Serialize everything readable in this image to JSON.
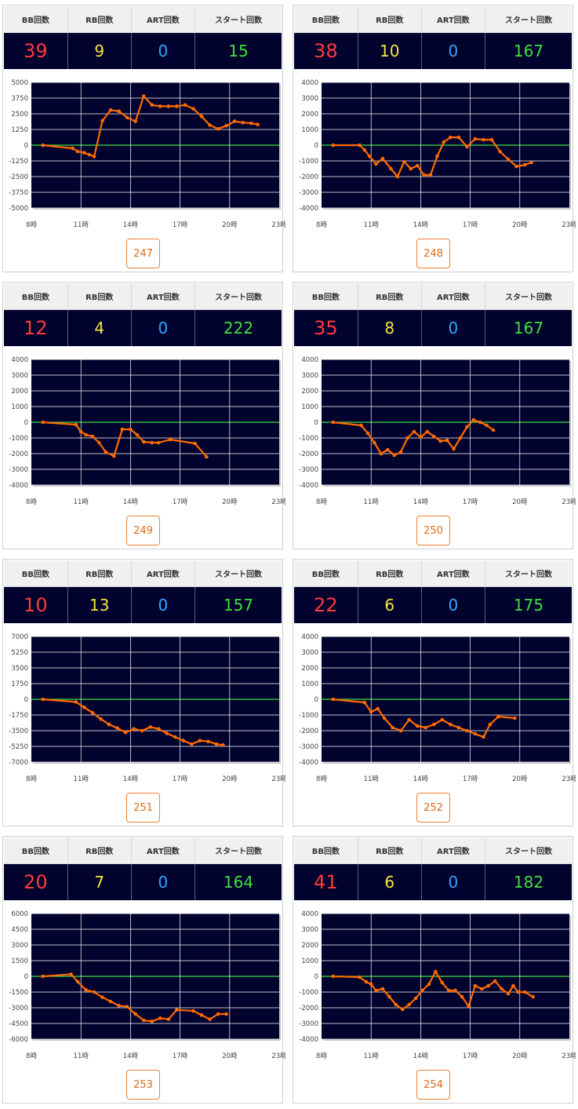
{
  "headers": {
    "bb": "BB回数",
    "rb": "RB回数",
    "art": "ART回数",
    "start": "スタート回数"
  },
  "colors": {
    "plot_bg": "#02022e",
    "grid": "#ffffff",
    "zero_line": "#3fe03f",
    "series": "#ff6a00",
    "bb": "#ff3b3b",
    "rb": "#f5e63a",
    "art": "#2ea8ff",
    "start": "#3fe03f"
  },
  "machines": [
    {
      "id": "247",
      "bb": "39",
      "rb": "9",
      "art": "0",
      "start": "15",
      "chart_data": {
        "type": "line",
        "x_ticks": [
          "8時",
          "11時",
          "14時",
          "17時",
          "20時",
          "23時"
        ],
        "xlim": [
          8,
          23
        ],
        "y_ticks": [
          "5000",
          "3750",
          "2500",
          "1250",
          "0",
          "-1250",
          "-2500",
          "-3750",
          "-5000"
        ],
        "ylim": [
          -5000,
          5000
        ],
        "points": [
          [
            8.7,
            0
          ],
          [
            10.5,
            -250
          ],
          [
            10.8,
            -500
          ],
          [
            11.2,
            -600
          ],
          [
            11.5,
            -750
          ],
          [
            11.8,
            -900
          ],
          [
            12.3,
            1950
          ],
          [
            12.8,
            2800
          ],
          [
            13.3,
            2700
          ],
          [
            13.8,
            2200
          ],
          [
            14.3,
            1900
          ],
          [
            14.8,
            3900
          ],
          [
            15.3,
            3200
          ],
          [
            15.8,
            3100
          ],
          [
            16.3,
            3100
          ],
          [
            16.8,
            3100
          ],
          [
            17.3,
            3200
          ],
          [
            17.8,
            2900
          ],
          [
            18.3,
            2300
          ],
          [
            18.8,
            1600
          ],
          [
            19.3,
            1300
          ],
          [
            19.8,
            1550
          ],
          [
            20.3,
            1900
          ],
          [
            20.8,
            1800
          ],
          [
            21.3,
            1750
          ],
          [
            21.7,
            1650
          ]
        ]
      }
    },
    {
      "id": "248",
      "bb": "38",
      "rb": "10",
      "art": "0",
      "start": "167",
      "chart_data": {
        "type": "line",
        "x_ticks": [
          "8時",
          "11時",
          "14時",
          "17時",
          "20時",
          "23時"
        ],
        "xlim": [
          8,
          23
        ],
        "y_ticks": [
          "4000",
          "3000",
          "2000",
          "1000",
          "0",
          "-1000",
          "-2000",
          "-3000",
          "-4000"
        ],
        "ylim": [
          -4000,
          4000
        ],
        "points": [
          [
            8.7,
            0
          ],
          [
            10.3,
            0
          ],
          [
            10.6,
            -300
          ],
          [
            10.9,
            -700
          ],
          [
            11.3,
            -1200
          ],
          [
            11.7,
            -850
          ],
          [
            12.2,
            -1500
          ],
          [
            12.6,
            -2000
          ],
          [
            13.0,
            -1050
          ],
          [
            13.4,
            -1500
          ],
          [
            13.8,
            -1300
          ],
          [
            14.2,
            -1900
          ],
          [
            14.6,
            -1900
          ],
          [
            15.0,
            -700
          ],
          [
            15.4,
            200
          ],
          [
            15.8,
            500
          ],
          [
            16.3,
            500
          ],
          [
            16.8,
            -100
          ],
          [
            17.3,
            400
          ],
          [
            17.8,
            350
          ],
          [
            18.3,
            350
          ],
          [
            18.8,
            -400
          ],
          [
            19.3,
            -900
          ],
          [
            19.8,
            -1350
          ],
          [
            20.3,
            -1250
          ],
          [
            20.7,
            -1100
          ]
        ]
      }
    },
    {
      "id": "249",
      "bb": "12",
      "rb": "4",
      "art": "0",
      "start": "222",
      "chart_data": {
        "type": "line",
        "x_ticks": [
          "8時",
          "11時",
          "14時",
          "17時",
          "20時",
          "23時"
        ],
        "xlim": [
          8,
          23
        ],
        "y_ticks": [
          "4000",
          "3000",
          "2000",
          "1000",
          "0",
          "-1000",
          "-2000",
          "-3000",
          "-4000"
        ],
        "ylim": [
          -4000,
          4000
        ],
        "points": [
          [
            8.7,
            0
          ],
          [
            10.7,
            -150
          ],
          [
            11.0,
            -600
          ],
          [
            11.3,
            -800
          ],
          [
            11.7,
            -900
          ],
          [
            12.1,
            -1300
          ],
          [
            12.5,
            -1900
          ],
          [
            13.0,
            -2150
          ],
          [
            13.5,
            -450
          ],
          [
            14.0,
            -450
          ],
          [
            14.4,
            -800
          ],
          [
            14.8,
            -1250
          ],
          [
            15.3,
            -1300
          ],
          [
            15.7,
            -1300
          ],
          [
            16.4,
            -1100
          ],
          [
            17.9,
            -1350
          ],
          [
            18.6,
            -2200
          ]
        ]
      }
    },
    {
      "id": "250",
      "bb": "35",
      "rb": "8",
      "art": "0",
      "start": "167",
      "chart_data": {
        "type": "line",
        "x_ticks": [
          "8時",
          "11時",
          "14時",
          "17時",
          "20時",
          "23時"
        ],
        "xlim": [
          8,
          23
        ],
        "y_ticks": [
          "4000",
          "3000",
          "2000",
          "1000",
          "0",
          "-1000",
          "-2000",
          "-3000",
          "-4000"
        ],
        "ylim": [
          -4000,
          4000
        ],
        "points": [
          [
            8.7,
            0
          ],
          [
            10.4,
            -200
          ],
          [
            10.8,
            -700
          ],
          [
            11.2,
            -1300
          ],
          [
            11.6,
            -2000
          ],
          [
            12.0,
            -1750
          ],
          [
            12.4,
            -2100
          ],
          [
            12.8,
            -1900
          ],
          [
            13.2,
            -1000
          ],
          [
            13.6,
            -600
          ],
          [
            14.0,
            -950
          ],
          [
            14.4,
            -600
          ],
          [
            14.8,
            -900
          ],
          [
            15.2,
            -1200
          ],
          [
            15.6,
            -1150
          ],
          [
            16.0,
            -1700
          ],
          [
            16.4,
            -1000
          ],
          [
            16.8,
            -300
          ],
          [
            17.2,
            150
          ],
          [
            17.6,
            0
          ],
          [
            18.0,
            -200
          ],
          [
            18.4,
            -500
          ]
        ]
      }
    },
    {
      "id": "251",
      "bb": "10",
      "rb": "13",
      "art": "0",
      "start": "157",
      "chart_data": {
        "type": "line",
        "x_ticks": [
          "8時",
          "11時",
          "14時",
          "17時",
          "20時",
          "23時"
        ],
        "xlim": [
          8,
          23
        ],
        "y_ticks": [
          "7000",
          "5250",
          "3500",
          "1750",
          "0",
          "-1750",
          "-3500",
          "-5250",
          "-7000"
        ],
        "ylim": [
          -7000,
          7000
        ],
        "points": [
          [
            8.7,
            0
          ],
          [
            10.7,
            -300
          ],
          [
            11.2,
            -900
          ],
          [
            11.7,
            -1500
          ],
          [
            12.2,
            -2200
          ],
          [
            12.7,
            -2800
          ],
          [
            13.2,
            -3200
          ],
          [
            13.7,
            -3700
          ],
          [
            14.2,
            -3300
          ],
          [
            14.7,
            -3500
          ],
          [
            15.2,
            -3100
          ],
          [
            15.7,
            -3300
          ],
          [
            16.2,
            -3800
          ],
          [
            16.7,
            -4200
          ],
          [
            17.2,
            -4600
          ],
          [
            17.7,
            -5000
          ],
          [
            18.2,
            -4600
          ],
          [
            18.7,
            -4700
          ],
          [
            19.2,
            -5000
          ],
          [
            19.6,
            -5100
          ]
        ]
      }
    },
    {
      "id": "252",
      "bb": "22",
      "rb": "6",
      "art": "0",
      "start": "175",
      "chart_data": {
        "type": "line",
        "x_ticks": [
          "8時",
          "11時",
          "14時",
          "17時",
          "20時",
          "23時"
        ],
        "xlim": [
          8,
          23
        ],
        "y_ticks": [
          "4000",
          "3000",
          "2000",
          "1000",
          "0",
          "-1000",
          "-2000",
          "-3000",
          "-4000"
        ],
        "ylim": [
          -4000,
          4000
        ],
        "points": [
          [
            8.7,
            0
          ],
          [
            10.6,
            -200
          ],
          [
            11.0,
            -800
          ],
          [
            11.4,
            -600
          ],
          [
            11.8,
            -1200
          ],
          [
            12.3,
            -1800
          ],
          [
            12.8,
            -2000
          ],
          [
            13.3,
            -1300
          ],
          [
            13.8,
            -1700
          ],
          [
            14.3,
            -1800
          ],
          [
            14.8,
            -1600
          ],
          [
            15.3,
            -1300
          ],
          [
            15.8,
            -1600
          ],
          [
            16.3,
            -1800
          ],
          [
            16.8,
            -2000
          ],
          [
            17.3,
            -2200
          ],
          [
            17.8,
            -2400
          ],
          [
            18.2,
            -1600
          ],
          [
            18.7,
            -1100
          ],
          [
            19.7,
            -1200
          ]
        ]
      }
    },
    {
      "id": "253",
      "bb": "20",
      "rb": "7",
      "art": "0",
      "start": "164",
      "chart_data": {
        "type": "line",
        "x_ticks": [
          "8時",
          "11時",
          "14時",
          "17時",
          "20時",
          "23時"
        ],
        "xlim": [
          8,
          23
        ],
        "y_ticks": [
          "6000",
          "4500",
          "3000",
          "1500",
          "0",
          "-1500",
          "-3000",
          "-4500",
          "-6000"
        ],
        "ylim": [
          -6000,
          6000
        ],
        "points": [
          [
            8.7,
            0
          ],
          [
            10.4,
            200
          ],
          [
            10.8,
            -500
          ],
          [
            11.3,
            -1300
          ],
          [
            11.8,
            -1500
          ],
          [
            12.3,
            -2000
          ],
          [
            12.8,
            -2400
          ],
          [
            13.3,
            -2800
          ],
          [
            13.8,
            -2900
          ],
          [
            14.3,
            -3600
          ],
          [
            14.8,
            -4200
          ],
          [
            15.3,
            -4300
          ],
          [
            15.8,
            -4000
          ],
          [
            16.3,
            -4100
          ],
          [
            16.8,
            -3200
          ],
          [
            17.8,
            -3300
          ],
          [
            18.3,
            -3700
          ],
          [
            18.8,
            -4100
          ],
          [
            19.3,
            -3600
          ],
          [
            19.8,
            -3600
          ]
        ]
      }
    },
    {
      "id": "254",
      "bb": "41",
      "rb": "6",
      "art": "0",
      "start": "182",
      "chart_data": {
        "type": "line",
        "x_ticks": [
          "8時",
          "11時",
          "14時",
          "17時",
          "20時",
          "23時"
        ],
        "xlim": [
          8,
          23
        ],
        "y_ticks": [
          "4000",
          "3000",
          "2000",
          "1000",
          "0",
          "-1000",
          "-2000",
          "-3000",
          "-4000"
        ],
        "ylim": [
          -4000,
          4000
        ],
        "points": [
          [
            8.7,
            0
          ],
          [
            10.3,
            -50
          ],
          [
            10.7,
            -350
          ],
          [
            11.0,
            -500
          ],
          [
            11.3,
            -900
          ],
          [
            11.7,
            -800
          ],
          [
            12.1,
            -1300
          ],
          [
            12.5,
            -1800
          ],
          [
            12.9,
            -2100
          ],
          [
            13.3,
            -1800
          ],
          [
            13.7,
            -1400
          ],
          [
            14.1,
            -900
          ],
          [
            14.5,
            -500
          ],
          [
            14.9,
            300
          ],
          [
            15.3,
            -400
          ],
          [
            15.7,
            -900
          ],
          [
            16.1,
            -900
          ],
          [
            16.5,
            -1300
          ],
          [
            16.9,
            -1900
          ],
          [
            17.3,
            -600
          ],
          [
            17.7,
            -800
          ],
          [
            18.1,
            -600
          ],
          [
            18.5,
            -300
          ],
          [
            18.9,
            -800
          ],
          [
            19.3,
            -1100
          ],
          [
            19.6,
            -600
          ],
          [
            19.9,
            -1000
          ],
          [
            20.3,
            -1000
          ],
          [
            20.8,
            -1300
          ]
        ]
      }
    }
  ]
}
